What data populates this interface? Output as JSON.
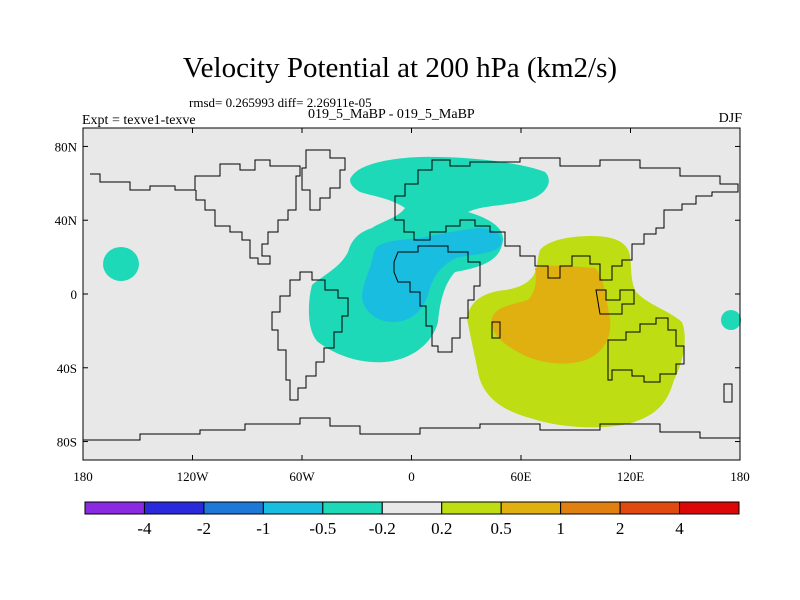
{
  "title": "Velocity Potential at 200 hPa (km2/s)",
  "stats": "rmsd= 0.265993 diff= 2.26911e-05",
  "experiment": "Expt = texve1-texve",
  "cases": "019_5_MaBP - 019_5_MaBP",
  "season": "DJF",
  "chart_data": {
    "type": "contour-map",
    "title": "Velocity Potential at 200 hPa (km2/s)",
    "projection": "cylindrical equidistant",
    "xlim": [
      -180,
      180
    ],
    "ylim": [
      -90,
      90
    ],
    "x_ticks": [
      {
        "value": -180,
        "label": "180"
      },
      {
        "value": -120,
        "label": "120W"
      },
      {
        "value": -60,
        "label": "60W"
      },
      {
        "value": 0,
        "label": "0"
      },
      {
        "value": 60,
        "label": "60E"
      },
      {
        "value": 120,
        "label": "120E"
      },
      {
        "value": 180,
        "label": "180"
      }
    ],
    "y_ticks": [
      {
        "value": 80,
        "label": "80N"
      },
      {
        "value": 40,
        "label": "40N"
      },
      {
        "value": 0,
        "label": "0"
      },
      {
        "value": -40,
        "label": "40S"
      },
      {
        "value": -80,
        "label": "80S"
      }
    ],
    "colorbar": {
      "colors": [
        "#8a2be2",
        "#2a2adc",
        "#1e78d8",
        "#19bde0",
        "#1ed9b7",
        "#e8e8e8",
        "#bedd12",
        "#dfb010",
        "#e08010",
        "#e04a10",
        "#dc0808"
      ],
      "boundaries": [
        "-4",
        "-2",
        "-1",
        "-0.5",
        "-0.2",
        "0.2",
        "0.5",
        "1",
        "2",
        "4"
      ]
    },
    "regions": [
      {
        "level": "-0.5 to -0.2",
        "name": "Atlantic / Europe / N Africa",
        "lon_range": [
          -55,
          75
        ],
        "lat_range": [
          -38,
          72
        ]
      },
      {
        "level": "-1 to -0.5",
        "name": "Equatorial Atlantic / W Africa",
        "lon_range": [
          -25,
          55
        ],
        "lat_range": [
          -15,
          38
        ]
      },
      {
        "level": "-0.5 to -0.2",
        "name": "Central N Pacific",
        "lon_range": [
          -160,
          -150
        ],
        "lat_range": [
          12,
          26
        ]
      },
      {
        "level": "-0.5 to -0.2",
        "name": "South Pacific",
        "lon_range": [
          170,
          178
        ],
        "lat_range": [
          -20,
          -11
        ]
      },
      {
        "level": "0.2 to 0.5",
        "name": "Indian Ocean / Maritime Continent",
        "lon_range": [
          30,
          148
        ],
        "lat_range": [
          -75,
          32
        ]
      },
      {
        "level": "0.5 to 1",
        "name": "Central Indian Ocean",
        "lon_range": [
          48,
          108
        ],
        "lat_range": [
          -35,
          16
        ]
      }
    ]
  }
}
